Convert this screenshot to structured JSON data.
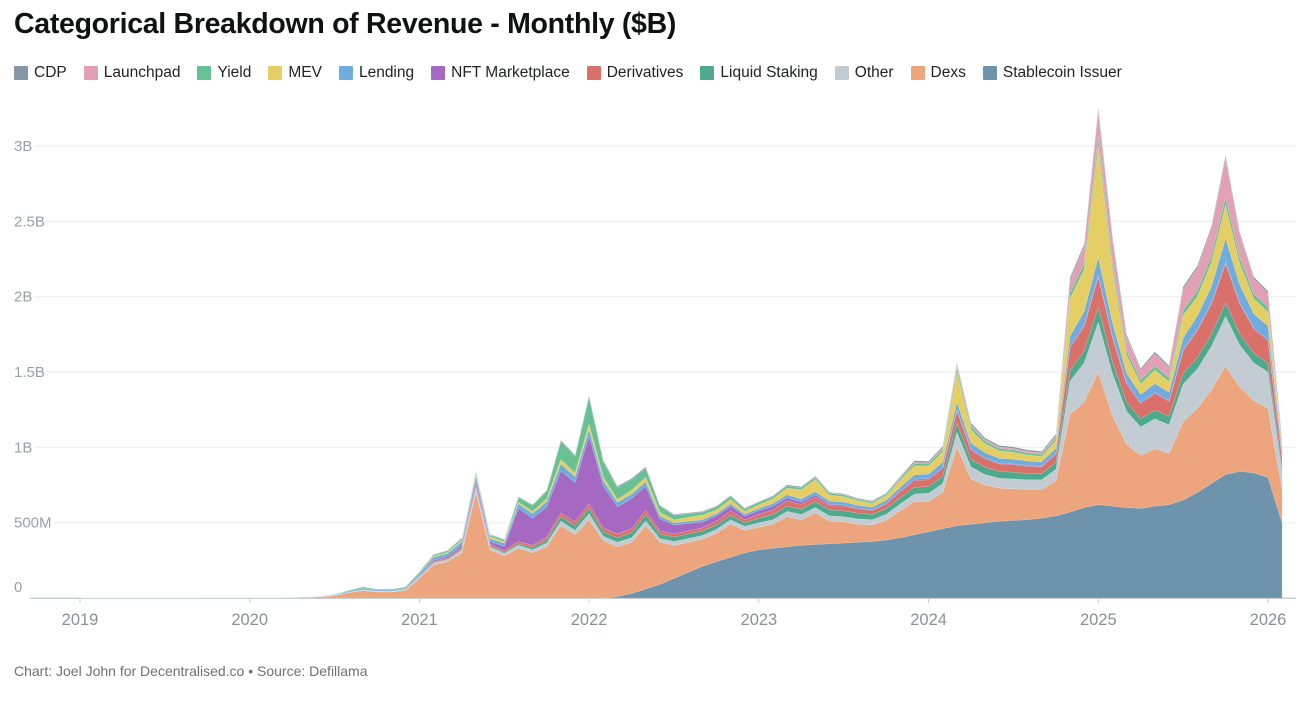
{
  "header": {
    "title": "Categorical Breakdown of Revenue - Monthly ($B)"
  },
  "footer": {
    "credit": "Chart: Joel John for Decentralised.co • Source: Defillama"
  },
  "chart_data": {
    "type": "area",
    "stacked": true,
    "unit": "$M per month",
    "title": "Categorical Breakdown of Revenue - Monthly ($B)",
    "x_axis": {
      "start_year": 2019,
      "start_month": 1,
      "months_per_tick": 12,
      "tick_labels": [
        "2019",
        "2020",
        "2021",
        "2022",
        "2023",
        "2024",
        "2025",
        "2026"
      ]
    },
    "y_axis": {
      "ticks": [
        {
          "value": 0,
          "label": "0"
        },
        {
          "value": 500,
          "label": "500M"
        },
        {
          "value": 1000,
          "label": "1B"
        },
        {
          "value": 1500,
          "label": "1.5B"
        },
        {
          "value": 2000,
          "label": "2B"
        },
        {
          "value": 2500,
          "label": "2.5B"
        },
        {
          "value": 3000,
          "label": "3B"
        }
      ],
      "ylim": [
        0,
        3000
      ],
      "grid": true
    },
    "legend_position": "top",
    "legend_order": [
      "CDP",
      "Launchpad",
      "Yield",
      "MEV",
      "Lending",
      "NFT Marketplace",
      "Derivatives",
      "Liquid Staking",
      "Other",
      "Dexs",
      "Stablecoin Issuer"
    ],
    "series": [
      {
        "name": "Stablecoin Issuer",
        "color": "#6e93ac",
        "values": [
          0,
          0,
          0,
          0,
          0,
          0,
          0,
          0,
          0,
          0,
          0,
          0,
          0,
          0,
          0,
          0,
          0,
          0,
          0,
          0,
          0,
          0,
          0,
          0,
          0,
          0,
          0,
          0,
          0,
          0,
          0,
          0,
          0,
          0,
          0,
          0,
          0,
          0,
          10,
          30,
          60,
          90,
          130,
          170,
          210,
          240,
          270,
          300,
          320,
          330,
          340,
          350,
          355,
          360,
          365,
          370,
          375,
          385,
          400,
          420,
          440,
          460,
          480,
          490,
          500,
          510,
          515,
          520,
          530,
          545,
          570,
          600,
          620,
          610,
          600,
          595,
          610,
          620,
          650,
          700,
          760,
          820,
          840,
          830,
          800,
          500
        ]
      },
      {
        "name": "Dexs",
        "color": "#eca57d",
        "values": [
          1,
          1,
          1,
          1,
          1,
          1,
          1,
          2,
          2,
          2,
          2,
          2,
          3,
          3,
          3,
          4,
          5,
          8,
          15,
          35,
          50,
          40,
          40,
          50,
          130,
          220,
          240,
          300,
          700,
          320,
          280,
          330,
          300,
          340,
          480,
          420,
          520,
          380,
          330,
          340,
          420,
          280,
          220,
          200,
          180,
          190,
          220,
          150,
          150,
          160,
          200,
          170,
          210,
          150,
          140,
          120,
          110,
          130,
          180,
          220,
          200,
          240,
          520,
          300,
          250,
          220,
          210,
          200,
          190,
          230,
          650,
          700,
          880,
          600,
          420,
          350,
          380,
          340,
          520,
          560,
          620,
          720,
          560,
          480,
          460,
          220
        ]
      },
      {
        "name": "Other",
        "color": "#c3ccd3",
        "values": [
          0,
          0,
          0,
          0,
          0,
          0,
          0,
          0,
          0,
          0,
          0,
          0,
          0,
          0,
          0,
          0,
          0,
          1,
          2,
          3,
          5,
          4,
          4,
          5,
          8,
          12,
          14,
          18,
          25,
          18,
          16,
          20,
          20,
          25,
          30,
          30,
          40,
          30,
          30,
          30,
          32,
          25,
          25,
          25,
          25,
          25,
          30,
          25,
          30,
          30,
          35,
          35,
          35,
          35,
          35,
          35,
          35,
          40,
          45,
          50,
          55,
          60,
          100,
          80,
          70,
          65,
          65,
          65,
          65,
          80,
          220,
          260,
          330,
          280,
          220,
          190,
          200,
          190,
          250,
          260,
          290,
          330,
          280,
          250,
          240,
          110
        ]
      },
      {
        "name": "Liquid Staking",
        "color": "#4fa98d",
        "values": [
          0,
          0,
          0,
          0,
          0,
          0,
          0,
          0,
          0,
          0,
          0,
          0,
          0,
          0,
          0,
          0,
          0,
          0,
          0,
          0,
          0,
          0,
          0,
          1,
          2,
          3,
          4,
          5,
          8,
          8,
          8,
          10,
          15,
          20,
          30,
          30,
          35,
          30,
          30,
          35,
          40,
          30,
          30,
          30,
          30,
          30,
          30,
          25,
          30,
          35,
          35,
          35,
          40,
          40,
          40,
          38,
          35,
          38,
          40,
          45,
          45,
          48,
          60,
          50,
          48,
          45,
          45,
          42,
          40,
          45,
          70,
          80,
          100,
          80,
          60,
          55,
          58,
          55,
          70,
          75,
          80,
          90,
          75,
          65,
          60,
          28
        ]
      },
      {
        "name": "Derivatives",
        "color": "#d9706a",
        "values": [
          0,
          0,
          0,
          0,
          0,
          0,
          0,
          0,
          0,
          0,
          0,
          0,
          0,
          0,
          0,
          0,
          0,
          0,
          0,
          0,
          1,
          1,
          1,
          1,
          5,
          8,
          8,
          10,
          15,
          12,
          10,
          15,
          15,
          20,
          25,
          25,
          30,
          25,
          25,
          25,
          30,
          20,
          20,
          20,
          20,
          25,
          30,
          20,
          25,
          30,
          35,
          30,
          30,
          28,
          30,
          28,
          25,
          30,
          40,
          45,
          45,
          50,
          80,
          60,
          55,
          50,
          50,
          48,
          45,
          55,
          150,
          160,
          200,
          160,
          120,
          100,
          110,
          100,
          150,
          180,
          200,
          260,
          200,
          160,
          150,
          70
        ]
      },
      {
        "name": "NFT Marketplace",
        "color": "#a569c2",
        "values": [
          0,
          0,
          0,
          0,
          0,
          0,
          0,
          0,
          0,
          0,
          0,
          0,
          0,
          0,
          0,
          0,
          0,
          0,
          0,
          0,
          0,
          0,
          0,
          0,
          3,
          8,
          10,
          15,
          25,
          15,
          30,
          220,
          180,
          200,
          280,
          260,
          450,
          280,
          180,
          200,
          160,
          80,
          60,
          50,
          40,
          35,
          30,
          25,
          25,
          25,
          20,
          18,
          15,
          10,
          8,
          6,
          5,
          5,
          6,
          8,
          8,
          8,
          10,
          8,
          6,
          5,
          5,
          4,
          4,
          5,
          8,
          10,
          12,
          10,
          8,
          6,
          6,
          5,
          6,
          6,
          7,
          8,
          6,
          5,
          5,
          2
        ]
      },
      {
        "name": "Lending",
        "color": "#6fadde",
        "values": [
          0,
          0,
          0,
          0,
          0,
          0,
          0,
          0,
          0,
          1,
          1,
          1,
          1,
          1,
          1,
          1,
          2,
          3,
          5,
          8,
          10,
          8,
          8,
          10,
          15,
          20,
          20,
          25,
          35,
          22,
          20,
          30,
          30,
          35,
          45,
          40,
          45,
          35,
          30,
          30,
          30,
          20,
          15,
          15,
          15,
          15,
          15,
          12,
          15,
          18,
          20,
          20,
          22,
          20,
          20,
          18,
          18,
          20,
          25,
          30,
          30,
          35,
          50,
          40,
          35,
          32,
          32,
          30,
          30,
          35,
          70,
          90,
          120,
          90,
          65,
          55,
          60,
          55,
          80,
          90,
          110,
          160,
          120,
          95,
          90,
          40
        ]
      },
      {
        "name": "MEV",
        "color": "#e5ce63",
        "values": [
          0,
          0,
          0,
          0,
          0,
          0,
          0,
          0,
          0,
          0,
          0,
          0,
          0,
          0,
          0,
          0,
          0,
          0,
          0,
          0,
          0,
          0,
          0,
          0,
          2,
          5,
          8,
          10,
          15,
          12,
          10,
          12,
          15,
          20,
          30,
          25,
          35,
          25,
          20,
          25,
          30,
          25,
          20,
          25,
          30,
          25,
          30,
          20,
          25,
          30,
          45,
          60,
          80,
          40,
          35,
          30,
          25,
          30,
          45,
          60,
          55,
          70,
          200,
          90,
          60,
          50,
          45,
          40,
          35,
          50,
          250,
          280,
          740,
          350,
          120,
          70,
          90,
          70,
          150,
          130,
          160,
          220,
          140,
          100,
          95,
          35
        ]
      },
      {
        "name": "Yield",
        "color": "#69c092",
        "values": [
          0,
          0,
          0,
          0,
          0,
          0,
          0,
          0,
          0,
          0,
          0,
          0,
          0,
          0,
          0,
          0,
          0,
          0,
          2,
          5,
          8,
          6,
          6,
          6,
          8,
          10,
          10,
          12,
          15,
          12,
          10,
          30,
          40,
          50,
          120,
          110,
          180,
          100,
          80,
          70,
          60,
          40,
          30,
          25,
          20,
          20,
          20,
          15,
          15,
          15,
          15,
          15,
          15,
          12,
          12,
          10,
          10,
          10,
          12,
          15,
          15,
          18,
          30,
          20,
          18,
          15,
          15,
          14,
          14,
          16,
          35,
          40,
          60,
          45,
          30,
          25,
          28,
          25,
          35,
          38,
          42,
          50,
          40,
          32,
          30,
          12
        ]
      },
      {
        "name": "Launchpad",
        "color": "#e3a0b4",
        "values": [
          0,
          0,
          0,
          0,
          0,
          0,
          0,
          0,
          0,
          0,
          0,
          0,
          0,
          0,
          0,
          0,
          0,
          0,
          0,
          0,
          0,
          0,
          0,
          0,
          0,
          0,
          0,
          0,
          0,
          0,
          0,
          0,
          0,
          0,
          0,
          0,
          0,
          0,
          0,
          0,
          0,
          0,
          0,
          0,
          0,
          0,
          0,
          0,
          0,
          0,
          0,
          0,
          2,
          2,
          2,
          2,
          2,
          3,
          5,
          8,
          5,
          8,
          20,
          12,
          10,
          10,
          10,
          10,
          10,
          15,
          90,
          110,
          170,
          160,
          90,
          65,
          80,
          70,
          140,
          150,
          180,
          260,
          150,
          100,
          95,
          30
        ]
      },
      {
        "name": "CDP",
        "color": "#8796a4",
        "values": [
          0,
          0,
          0,
          0,
          0,
          0,
          0,
          0,
          0,
          0,
          0,
          0,
          0,
          0,
          0,
          0,
          0,
          0,
          1,
          1,
          1,
          1,
          1,
          1,
          2,
          3,
          3,
          4,
          5,
          4,
          4,
          5,
          5,
          5,
          8,
          8,
          10,
          8,
          8,
          8,
          8,
          6,
          5,
          5,
          5,
          5,
          5,
          5,
          5,
          5,
          6,
          6,
          6,
          5,
          5,
          5,
          5,
          5,
          8,
          10,
          10,
          10,
          10,
          12,
          10,
          10,
          10,
          10,
          10,
          12,
          15,
          18,
          20,
          18,
          15,
          12,
          12,
          12,
          15,
          15,
          16,
          18,
          15,
          13,
          12,
          5
        ]
      }
    ]
  }
}
